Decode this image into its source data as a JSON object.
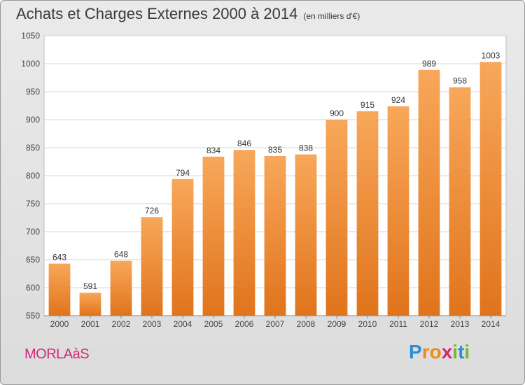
{
  "header": {
    "title": "Achats et Charges Externes 2000 à 2014",
    "unit": "(en milliers d'€)"
  },
  "footer": {
    "commune": "MORLAàS",
    "logo_letters": [
      "P",
      "r",
      "o",
      "x",
      "i",
      "t",
      "i"
    ],
    "logo_colors": [
      "#2a8fd6",
      "#f08a1c",
      "#f08a1c",
      "#d0287a",
      "#77b82a",
      "#2a8fd6",
      "#77b82a"
    ]
  },
  "chart_data": {
    "type": "bar",
    "categories": [
      "2000",
      "2001",
      "2002",
      "2003",
      "2004",
      "2005",
      "2006",
      "2007",
      "2008",
      "2009",
      "2010",
      "2011",
      "2012",
      "2013",
      "2014"
    ],
    "values": [
      643,
      591,
      648,
      726,
      794,
      834,
      846,
      835,
      838,
      900,
      915,
      924,
      989,
      958,
      1003
    ],
    "value_labels": [
      "643",
      "591",
      "648",
      "726",
      "794",
      "834",
      "846",
      "835",
      "838",
      "900",
      "915",
      "924",
      "989",
      "958",
      "1003"
    ],
    "yticks": [
      "550",
      "600",
      "650",
      "700",
      "750",
      "800",
      "850",
      "900",
      "950",
      "1000",
      "1050"
    ],
    "ylim": [
      550,
      1050
    ],
    "grid": true,
    "bar_color": "#f08a2e",
    "xlabel": "",
    "ylabel": ""
  }
}
